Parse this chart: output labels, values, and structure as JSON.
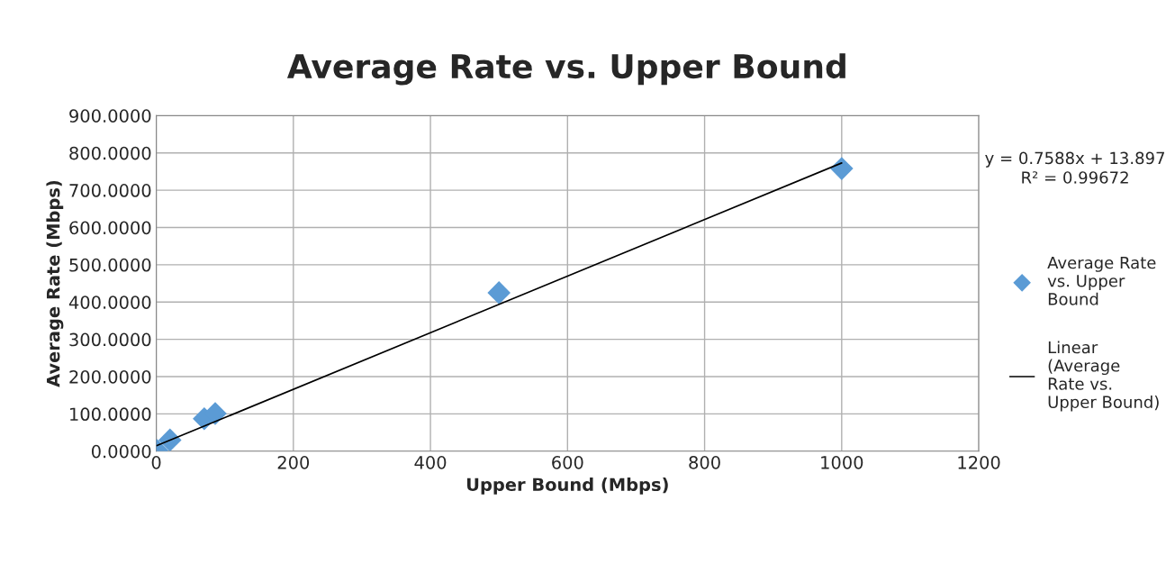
{
  "chart_data": {
    "type": "scatter",
    "title": "Average Rate vs. Upper Bound",
    "xlabel": "Upper Bound (Mbps)",
    "ylabel": "Average Rate (Mbps)",
    "series": [
      {
        "name": "Average Rate vs. Upper Bound",
        "color": "#5b9bd5",
        "marker": "diamond",
        "x": [
          1,
          20,
          70,
          86,
          500,
          1000
        ],
        "values": [
          2,
          30,
          87,
          101,
          425,
          758
        ]
      },
      {
        "name": "Linear (Average Rate vs. Upper Bound)",
        "type": "line",
        "color": "#000000",
        "marker": "none",
        "line_style": "solid",
        "x": [
          1,
          1000
        ],
        "values": [
          15,
          773
        ]
      }
    ],
    "annotations": [
      "y = 0.7588x + 13.897\nR² = 0.99672"
    ],
    "xlim": [
      0,
      1200
    ],
    "xticks": [
      0,
      200,
      400,
      600,
      800,
      1000,
      1200
    ],
    "ylim": [
      0,
      900
    ],
    "yticks": [
      {
        "value": 0,
        "label": "0.0000"
      },
      {
        "value": 100,
        "label": "100.0000"
      },
      {
        "value": 200,
        "label": "200.0000"
      },
      {
        "value": 300,
        "label": "300.0000"
      },
      {
        "value": 400,
        "label": "400.0000"
      },
      {
        "value": 500,
        "label": "500.0000"
      },
      {
        "value": 600,
        "label": "600.0000"
      },
      {
        "value": 700,
        "label": "700.0000"
      },
      {
        "value": 800,
        "label": "800.0000"
      },
      {
        "value": 900,
        "label": "900.0000"
      }
    ],
    "grid": true,
    "legend": "right"
  }
}
